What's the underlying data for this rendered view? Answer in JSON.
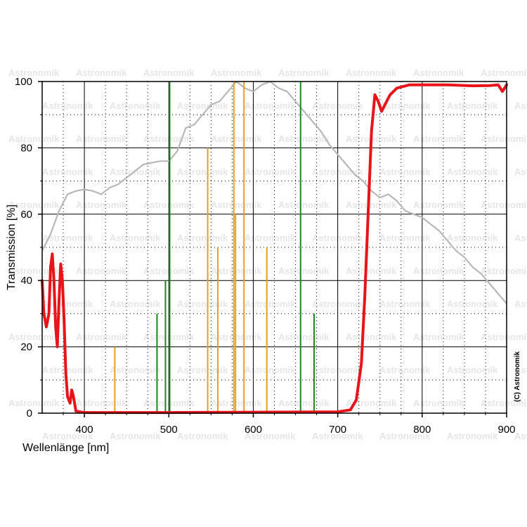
{
  "chart_data": {
    "type": "line",
    "title": "",
    "xlabel": "Wellenlänge [nm]",
    "ylabel": "Transmission [%]",
    "xlim": [
      350,
      900
    ],
    "ylim": [
      0,
      100
    ],
    "x_ticks": [
      400,
      500,
      600,
      700,
      800,
      900
    ],
    "y_ticks": [
      0,
      20,
      40,
      60,
      80,
      100
    ],
    "grid": true,
    "watermark": "Astronomik",
    "copyright": "(C) Astronomik",
    "colors": {
      "filter": "#e8141a",
      "sensor": "#b8b8b8",
      "orange_lines": "#e8a020",
      "green_lines": "#1a8a1a",
      "grid": "#000000"
    },
    "series": [
      {
        "role": "filter-transmission",
        "points": [
          [
            350,
            40
          ],
          [
            352,
            30
          ],
          [
            355,
            26
          ],
          [
            358,
            30
          ],
          [
            360,
            44
          ],
          [
            362,
            48
          ],
          [
            364,
            40
          ],
          [
            366,
            26
          ],
          [
            368,
            20
          ],
          [
            370,
            34
          ],
          [
            372,
            45
          ],
          [
            374,
            40
          ],
          [
            376,
            28
          ],
          [
            378,
            12
          ],
          [
            380,
            5
          ],
          [
            383,
            3
          ],
          [
            385,
            7
          ],
          [
            387,
            5
          ],
          [
            390,
            0.6
          ],
          [
            400,
            0.2
          ],
          [
            500,
            0.2
          ],
          [
            600,
            0.3
          ],
          [
            700,
            0.4
          ],
          [
            715,
            1
          ],
          [
            722,
            4
          ],
          [
            728,
            15
          ],
          [
            732,
            35
          ],
          [
            736,
            60
          ],
          [
            740,
            85
          ],
          [
            744,
            96
          ],
          [
            748,
            94
          ],
          [
            752,
            91
          ],
          [
            756,
            93
          ],
          [
            762,
            96
          ],
          [
            770,
            98
          ],
          [
            785,
            99
          ],
          [
            800,
            99
          ],
          [
            830,
            99
          ],
          [
            860,
            98.7
          ],
          [
            880,
            98.8
          ],
          [
            890,
            99
          ],
          [
            895,
            97
          ],
          [
            900,
            99
          ]
        ]
      },
      {
        "role": "sensor-response",
        "points": [
          [
            350,
            49
          ],
          [
            360,
            54
          ],
          [
            370,
            61
          ],
          [
            380,
            66
          ],
          [
            390,
            67
          ],
          [
            400,
            67.5
          ],
          [
            410,
            67
          ],
          [
            420,
            66
          ],
          [
            430,
            68
          ],
          [
            440,
            69
          ],
          [
            450,
            71
          ],
          [
            460,
            73
          ],
          [
            470,
            75
          ],
          [
            480,
            75.5
          ],
          [
            490,
            76
          ],
          [
            500,
            76
          ],
          [
            510,
            79
          ],
          [
            520,
            86
          ],
          [
            530,
            87
          ],
          [
            540,
            90
          ],
          [
            550,
            93
          ],
          [
            560,
            94
          ],
          [
            570,
            97
          ],
          [
            580,
            100
          ],
          [
            590,
            98
          ],
          [
            600,
            97
          ],
          [
            610,
            99
          ],
          [
            620,
            100
          ],
          [
            630,
            98
          ],
          [
            640,
            97
          ],
          [
            650,
            94
          ],
          [
            660,
            91
          ],
          [
            670,
            88
          ],
          [
            680,
            85
          ],
          [
            690,
            81
          ],
          [
            700,
            78
          ],
          [
            710,
            75
          ],
          [
            720,
            72
          ],
          [
            730,
            70
          ],
          [
            740,
            67
          ],
          [
            750,
            65
          ],
          [
            760,
            66
          ],
          [
            770,
            64
          ],
          [
            780,
            61
          ],
          [
            790,
            60
          ],
          [
            800,
            59
          ],
          [
            810,
            57
          ],
          [
            820,
            55
          ],
          [
            830,
            52
          ],
          [
            840,
            49
          ],
          [
            850,
            47
          ],
          [
            860,
            44
          ],
          [
            870,
            42
          ],
          [
            880,
            39
          ],
          [
            890,
            36
          ],
          [
            900,
            33
          ]
        ]
      }
    ],
    "emission_lines": [
      {
        "x": 436,
        "y": 20,
        "color": "orange"
      },
      {
        "x": 486,
        "y": 30,
        "color": "green"
      },
      {
        "x": 496,
        "y": 40,
        "color": "green"
      },
      {
        "x": 501,
        "y": 100,
        "color": "green"
      },
      {
        "x": 546,
        "y": 80,
        "color": "orange"
      },
      {
        "x": 558,
        "y": 50,
        "color": "orange"
      },
      {
        "x": 577,
        "y": 100,
        "color": "orange"
      },
      {
        "x": 579,
        "y": 60,
        "color": "orange"
      },
      {
        "x": 589,
        "y": 100,
        "color": "orange"
      },
      {
        "x": 616,
        "y": 50,
        "color": "orange"
      },
      {
        "x": 656,
        "y": 100,
        "color": "green"
      },
      {
        "x": 672,
        "y": 30,
        "color": "green"
      }
    ]
  }
}
